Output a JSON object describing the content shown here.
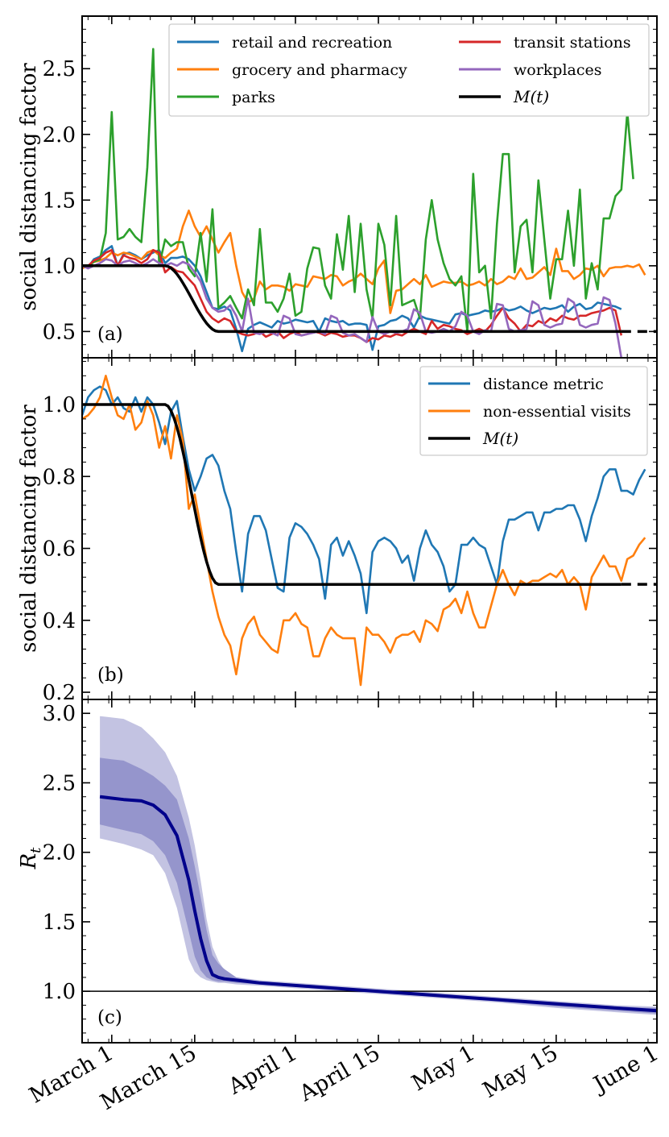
{
  "colors": {
    "blue": "#1f77b4",
    "orange": "#ff7f0e",
    "green": "#2ca02c",
    "red": "#d62728",
    "purple": "#9467bd",
    "black": "#000000",
    "navy": "#00008b",
    "band_inner": "#9595cc",
    "band_outer": "#c3c3e2"
  },
  "x_axis": {
    "tick_days": [
      5,
      19,
      36,
      50,
      66,
      80,
      97
    ],
    "tick_labels": [
      "March 1",
      "March 15",
      "April 1",
      "April 15",
      "May 1",
      "May 15",
      "June 1"
    ],
    "xlim": [
      0,
      97
    ]
  },
  "chart_data": [
    {
      "type": "line",
      "panel_label": "(a)",
      "ylabel": "social distancing factor",
      "ylim": [
        0.3,
        2.9
      ],
      "yticks": [
        0.5,
        1.0,
        1.5,
        2.0,
        2.5
      ],
      "ytick_labels": [
        "0.5",
        "1.0",
        "1.5",
        "2.0",
        "2.5"
      ],
      "x_unit": "day index (day 5 = March 1)",
      "legend": {
        "placement": "top-right",
        "entries": [
          {
            "name": "retail and recreation",
            "color": "blue"
          },
          {
            "name": "transit stations",
            "color": "red"
          },
          {
            "name": "grocery and pharmacy",
            "color": "orange"
          },
          {
            "name": "workplaces",
            "color": "purple"
          },
          {
            "name": "parks",
            "color": "green"
          },
          {
            "name": "M(t)",
            "color": "black"
          }
        ]
      },
      "series": [
        {
          "name": "retail and recreation",
          "color": "blue",
          "x_start": 0,
          "values": [
            1.0,
            0.99,
            1.05,
            1.07,
            1.12,
            1.15,
            1.0,
            1.09,
            1.1,
            1.08,
            1.05,
            1.08,
            1.1,
            1.12,
            1.02,
            1.06,
            1.06,
            1.07,
            1.05,
            1.0,
            0.92,
            0.8,
            0.68,
            0.67,
            0.69,
            0.66,
            0.52,
            0.35,
            0.52,
            0.55,
            0.57,
            0.55,
            0.53,
            0.58,
            0.56,
            0.57,
            0.59,
            0.58,
            0.57,
            0.58,
            0.5,
            0.6,
            0.58,
            0.57,
            0.58,
            0.55,
            0.56,
            0.56,
            0.55,
            0.36,
            0.54,
            0.55,
            0.58,
            0.59,
            0.62,
            0.6,
            0.53,
            0.62,
            0.6,
            0.59,
            0.58,
            0.57,
            0.56,
            0.63,
            0.64,
            0.62,
            0.63,
            0.64,
            0.66,
            0.65,
            0.66,
            0.68,
            0.66,
            0.67,
            0.69,
            0.66,
            0.64,
            0.66,
            0.68,
            0.67,
            0.68,
            0.7,
            0.65,
            0.69,
            0.71,
            0.67,
            0.68,
            0.72,
            0.71,
            0.7,
            0.69,
            0.67
          ]
        },
        {
          "name": "grocery and pharmacy",
          "color": "orange",
          "x_start": 0,
          "values": [
            0.98,
            1.0,
            1.03,
            1.04,
            1.06,
            1.1,
            1.08,
            1.1,
            1.09,
            1.07,
            1.05,
            1.1,
            1.12,
            1.08,
            1.06,
            1.1,
            1.13,
            1.3,
            1.42,
            1.3,
            1.22,
            1.3,
            1.2,
            1.1,
            1.18,
            1.25,
            1.0,
            0.8,
            0.72,
            0.75,
            0.88,
            0.82,
            0.85,
            0.85,
            0.84,
            0.81,
            0.86,
            0.85,
            0.84,
            0.92,
            0.91,
            0.9,
            0.93,
            0.92,
            0.85,
            0.88,
            0.9,
            0.94,
            0.9,
            0.86,
            0.98,
            1.04,
            0.64,
            0.81,
            0.82,
            0.86,
            0.9,
            0.86,
            0.93,
            0.84,
            0.86,
            0.88,
            0.87,
            0.87,
            0.88,
            0.85,
            0.86,
            0.88,
            0.85,
            0.9,
            0.86,
            0.88,
            0.92,
            0.9,
            0.98,
            0.9,
            0.91,
            0.95,
            0.99,
            0.93,
            1.13,
            0.96,
            0.96,
            0.9,
            0.93,
            0.98,
            0.97,
            1.0,
            0.92,
            0.98,
            0.99,
            0.99,
            1.0,
            0.99,
            1.01,
            0.93
          ]
        },
        {
          "name": "parks",
          "color": "green",
          "x_start": 0,
          "values": [
            1.0,
            1.0,
            1.03,
            1.05,
            1.25,
            2.17,
            1.2,
            1.22,
            1.28,
            1.22,
            1.18,
            1.75,
            2.65,
            1.0,
            1.2,
            1.15,
            1.18,
            1.18,
            0.98,
            0.92,
            1.25,
            0.88,
            1.43,
            0.68,
            0.72,
            0.77,
            0.68,
            0.6,
            0.82,
            0.7,
            1.28,
            0.72,
            0.72,
            0.65,
            0.75,
            0.94,
            0.62,
            0.65,
            0.98,
            1.14,
            1.13,
            0.85,
            0.75,
            1.24,
            0.97,
            1.38,
            0.8,
            1.32,
            0.82,
            0.6,
            1.32,
            1.16,
            0.7,
            1.38,
            0.7,
            0.72,
            0.74,
            0.6,
            1.2,
            1.5,
            1.2,
            1.02,
            0.9,
            0.85,
            0.92,
            0.5,
            1.7,
            0.95,
            1.0,
            0.6,
            1.32,
            1.85,
            1.85,
            0.95,
            1.3,
            1.35,
            0.95,
            1.65,
            1.2,
            0.75,
            1.05,
            1.05,
            1.42,
            1.0,
            1.58,
            0.75,
            1.02,
            0.82,
            1.36,
            1.36,
            1.53,
            1.58,
            2.17,
            1.66
          ]
        },
        {
          "name": "transit stations",
          "color": "red",
          "x_start": 0,
          "values": [
            1.0,
            1.0,
            1.04,
            1.06,
            1.1,
            1.12,
            1.0,
            1.08,
            1.06,
            1.05,
            1.02,
            1.05,
            1.12,
            1.1,
            0.95,
            0.99,
            0.96,
            0.95,
            0.9,
            0.85,
            0.75,
            0.65,
            0.6,
            0.57,
            0.6,
            0.58,
            0.5,
            0.48,
            0.47,
            0.48,
            0.5,
            0.46,
            0.48,
            0.5,
            0.45,
            0.48,
            0.5,
            0.47,
            0.48,
            0.5,
            0.49,
            0.47,
            0.49,
            0.48,
            0.46,
            0.47,
            0.47,
            0.45,
            0.42,
            0.45,
            0.44,
            0.47,
            0.46,
            0.48,
            0.47,
            0.5,
            0.52,
            0.5,
            0.48,
            0.58,
            0.52,
            0.55,
            0.54,
            0.52,
            0.51,
            0.48,
            0.5,
            0.52,
            0.5,
            0.55,
            0.62,
            0.68,
            0.6,
            0.56,
            0.5,
            0.55,
            0.54,
            0.58,
            0.56,
            0.6,
            0.58,
            0.62,
            0.6,
            0.59,
            0.62,
            0.62,
            0.64,
            0.65,
            0.66,
            0.68,
            0.66,
            0.47
          ]
        },
        {
          "name": "workplaces",
          "color": "purple",
          "x_start": 0,
          "values": [
            1.0,
            0.98,
            1.0,
            1.02,
            1.05,
            1.04,
            1.0,
            1.03,
            1.04,
            1.02,
            1.0,
            1.02,
            1.05,
            1.02,
            1.0,
            1.02,
            1.0,
            1.03,
            1.01,
            0.95,
            0.88,
            0.75,
            0.68,
            0.65,
            0.66,
            0.7,
            0.62,
            0.5,
            0.75,
            0.49,
            0.48,
            0.5,
            0.49,
            0.47,
            0.62,
            0.6,
            0.48,
            0.47,
            0.48,
            0.49,
            0.5,
            0.48,
            0.62,
            0.6,
            0.49,
            0.47,
            0.48,
            0.45,
            0.42,
            0.61,
            0.5,
            0.48,
            0.5,
            0.49,
            0.5,
            0.52,
            0.67,
            0.64,
            0.5,
            0.49,
            0.5,
            0.52,
            0.5,
            0.54,
            0.65,
            0.62,
            0.5,
            0.48,
            0.51,
            0.5,
            0.71,
            0.7,
            0.52,
            0.5,
            0.51,
            0.52,
            0.73,
            0.7,
            0.55,
            0.53,
            0.55,
            0.56,
            0.75,
            0.72,
            0.55,
            0.53,
            0.55,
            0.56,
            0.76,
            0.74,
            0.56,
            0.3
          ]
        }
      ],
      "model_curve": {
        "name": "M(t)",
        "start": 1.0,
        "end": 0.5,
        "drop_start_day": 14,
        "drop_end_day": 23,
        "solid_until_day": 91,
        "dashed_until_day": 97
      }
    },
    {
      "type": "line",
      "panel_label": "(b)",
      "ylabel": "social distancing factor",
      "ylim": [
        0.18,
        1.13
      ],
      "yticks": [
        0.2,
        0.4,
        0.6,
        0.8,
        1.0
      ],
      "ytick_labels": [
        "0.2",
        "0.4",
        "0.6",
        "0.8",
        "1.0"
      ],
      "x_unit": "day index (day 5 = March 1)",
      "legend": {
        "placement": "top-right",
        "entries": [
          {
            "name": "distance metric",
            "color": "blue"
          },
          {
            "name": "non-essential visits",
            "color": "orange"
          },
          {
            "name": "M(t)",
            "color": "black"
          }
        ]
      },
      "series": [
        {
          "name": "distance metric",
          "color": "blue",
          "x_start": 0,
          "values": [
            0.97,
            1.02,
            1.04,
            1.05,
            1.04,
            1.0,
            1.02,
            0.99,
            0.98,
            1.02,
            0.98,
            1.02,
            1.0,
            0.95,
            0.89,
            0.98,
            1.01,
            0.91,
            0.82,
            0.76,
            0.8,
            0.85,
            0.86,
            0.83,
            0.76,
            0.71,
            0.59,
            0.48,
            0.64,
            0.69,
            0.69,
            0.65,
            0.57,
            0.49,
            0.48,
            0.63,
            0.67,
            0.66,
            0.64,
            0.61,
            0.57,
            0.46,
            0.61,
            0.63,
            0.58,
            0.62,
            0.58,
            0.53,
            0.42,
            0.59,
            0.62,
            0.63,
            0.62,
            0.6,
            0.56,
            0.58,
            0.51,
            0.6,
            0.65,
            0.61,
            0.59,
            0.55,
            0.48,
            0.5,
            0.61,
            0.61,
            0.63,
            0.61,
            0.6,
            0.55,
            0.5,
            0.62,
            0.68,
            0.68,
            0.69,
            0.7,
            0.7,
            0.65,
            0.7,
            0.7,
            0.71,
            0.71,
            0.72,
            0.72,
            0.68,
            0.62,
            0.69,
            0.74,
            0.8,
            0.82,
            0.82,
            0.76,
            0.76,
            0.75,
            0.79,
            0.82
          ]
        },
        {
          "name": "non-essential visits",
          "color": "orange",
          "x_start": 0,
          "values": [
            0.96,
            0.97,
            0.99,
            1.02,
            1.08,
            1.02,
            0.97,
            0.96,
            1.0,
            0.93,
            0.95,
            1.01,
            0.97,
            0.88,
            0.94,
            0.85,
            0.97,
            0.9,
            0.71,
            0.75,
            0.66,
            0.57,
            0.48,
            0.41,
            0.36,
            0.33,
            0.25,
            0.35,
            0.39,
            0.41,
            0.36,
            0.34,
            0.32,
            0.31,
            0.4,
            0.4,
            0.42,
            0.39,
            0.38,
            0.3,
            0.3,
            0.35,
            0.38,
            0.36,
            0.35,
            0.35,
            0.35,
            0.22,
            0.38,
            0.36,
            0.36,
            0.34,
            0.31,
            0.35,
            0.36,
            0.36,
            0.37,
            0.34,
            0.4,
            0.39,
            0.37,
            0.43,
            0.44,
            0.46,
            0.42,
            0.48,
            0.42,
            0.38,
            0.38,
            0.44,
            0.5,
            0.54,
            0.5,
            0.47,
            0.51,
            0.5,
            0.51,
            0.51,
            0.52,
            0.53,
            0.52,
            0.54,
            0.5,
            0.52,
            0.5,
            0.43,
            0.52,
            0.55,
            0.58,
            0.55,
            0.55,
            0.51,
            0.57,
            0.58,
            0.61,
            0.63
          ]
        }
      ],
      "model_curve": {
        "name": "M(t)",
        "start": 1.0,
        "end": 0.5,
        "drop_start_day": 14,
        "drop_end_day": 23,
        "solid_until_day": 91,
        "dashed_until_day": 97
      }
    },
    {
      "type": "area",
      "panel_label": "(c)",
      "ylabel": "Rt",
      "ylim": [
        0.63,
        3.1
      ],
      "yticks": [
        1.0,
        1.5,
        2.0,
        2.5,
        3.0
      ],
      "ytick_labels": [
        "1.0",
        "1.5",
        "2.0",
        "2.5",
        "3.0"
      ],
      "reference_line": 1.0,
      "x": [
        3,
        5,
        7,
        10,
        12,
        14,
        16,
        18,
        19,
        20,
        21,
        22,
        23,
        24,
        26,
        30,
        40,
        50,
        60,
        70,
        80,
        90,
        97
      ],
      "median": [
        2.4,
        2.39,
        2.38,
        2.37,
        2.34,
        2.27,
        2.12,
        1.8,
        1.58,
        1.38,
        1.22,
        1.12,
        1.1,
        1.09,
        1.08,
        1.06,
        1.03,
        1.0,
        0.97,
        0.94,
        0.91,
        0.88,
        0.86
      ],
      "inner_upper": [
        2.68,
        2.67,
        2.66,
        2.6,
        2.55,
        2.48,
        2.38,
        2.1,
        1.9,
        1.68,
        1.44,
        1.26,
        1.2,
        1.16,
        1.1,
        1.07,
        1.04,
        1.01,
        0.98,
        0.95,
        0.92,
        0.89,
        0.88
      ],
      "inner_lower": [
        2.2,
        2.18,
        2.16,
        2.13,
        2.08,
        1.98,
        1.78,
        1.43,
        1.25,
        1.15,
        1.1,
        1.08,
        1.07,
        1.07,
        1.06,
        1.05,
        1.02,
        0.99,
        0.96,
        0.93,
        0.89,
        0.86,
        0.84
      ],
      "outer_upper": [
        2.98,
        2.97,
        2.96,
        2.9,
        2.82,
        2.72,
        2.55,
        2.25,
        2.05,
        1.8,
        1.52,
        1.32,
        1.22,
        1.15,
        1.1,
        1.08,
        1.05,
        1.02,
        0.99,
        0.96,
        0.93,
        0.9,
        0.89
      ],
      "outer_lower": [
        2.1,
        2.08,
        2.06,
        2.02,
        1.98,
        1.85,
        1.6,
        1.23,
        1.14,
        1.1,
        1.08,
        1.07,
        1.06,
        1.06,
        1.05,
        1.04,
        1.01,
        0.98,
        0.95,
        0.92,
        0.88,
        0.85,
        0.83
      ]
    }
  ]
}
